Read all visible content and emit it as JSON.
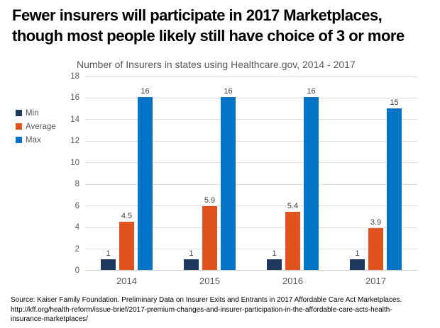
{
  "header": {
    "title_lines": [
      "Fewer insurers will participate in 2017 Marketplaces,",
      "though most people likely still have choice of 3 or more"
    ]
  },
  "chart_data": {
    "type": "bar",
    "title": "Number of Insurers in states using Healthcare.gov, 2014 - 2017",
    "categories": [
      "2014",
      "2015",
      "2016",
      "2017"
    ],
    "series": [
      {
        "name": "Min",
        "color": "#1D395E",
        "values": [
          1,
          1,
          1,
          1
        ]
      },
      {
        "name": "Average",
        "color": "#E0521E",
        "values": [
          4.5,
          5.9,
          5.4,
          3.9
        ]
      },
      {
        "name": "Max",
        "color": "#0474C6",
        "values": [
          16,
          16,
          16,
          15
        ]
      }
    ],
    "ylim": [
      0,
      18
    ],
    "ytick_step": 2,
    "grid": true,
    "legend_position": "left",
    "colors": {
      "gridline": "#dedede",
      "axis_line": "#c9c9c9",
      "tick_text": "#595959",
      "data_label_text": "#404040"
    }
  },
  "source": {
    "lines": [
      "Source: Kaiser Family Foundation. Preliminary Data on Insurer Exits and Entrants in 2017 Affordable Care Act Marketplaces.",
      "http://kff.org/health-reform/issue-brief/2017-premium-changes-and-insurer-participation-in-the-affordable-care-acts-health-",
      "insurance-marketplaces/"
    ]
  }
}
